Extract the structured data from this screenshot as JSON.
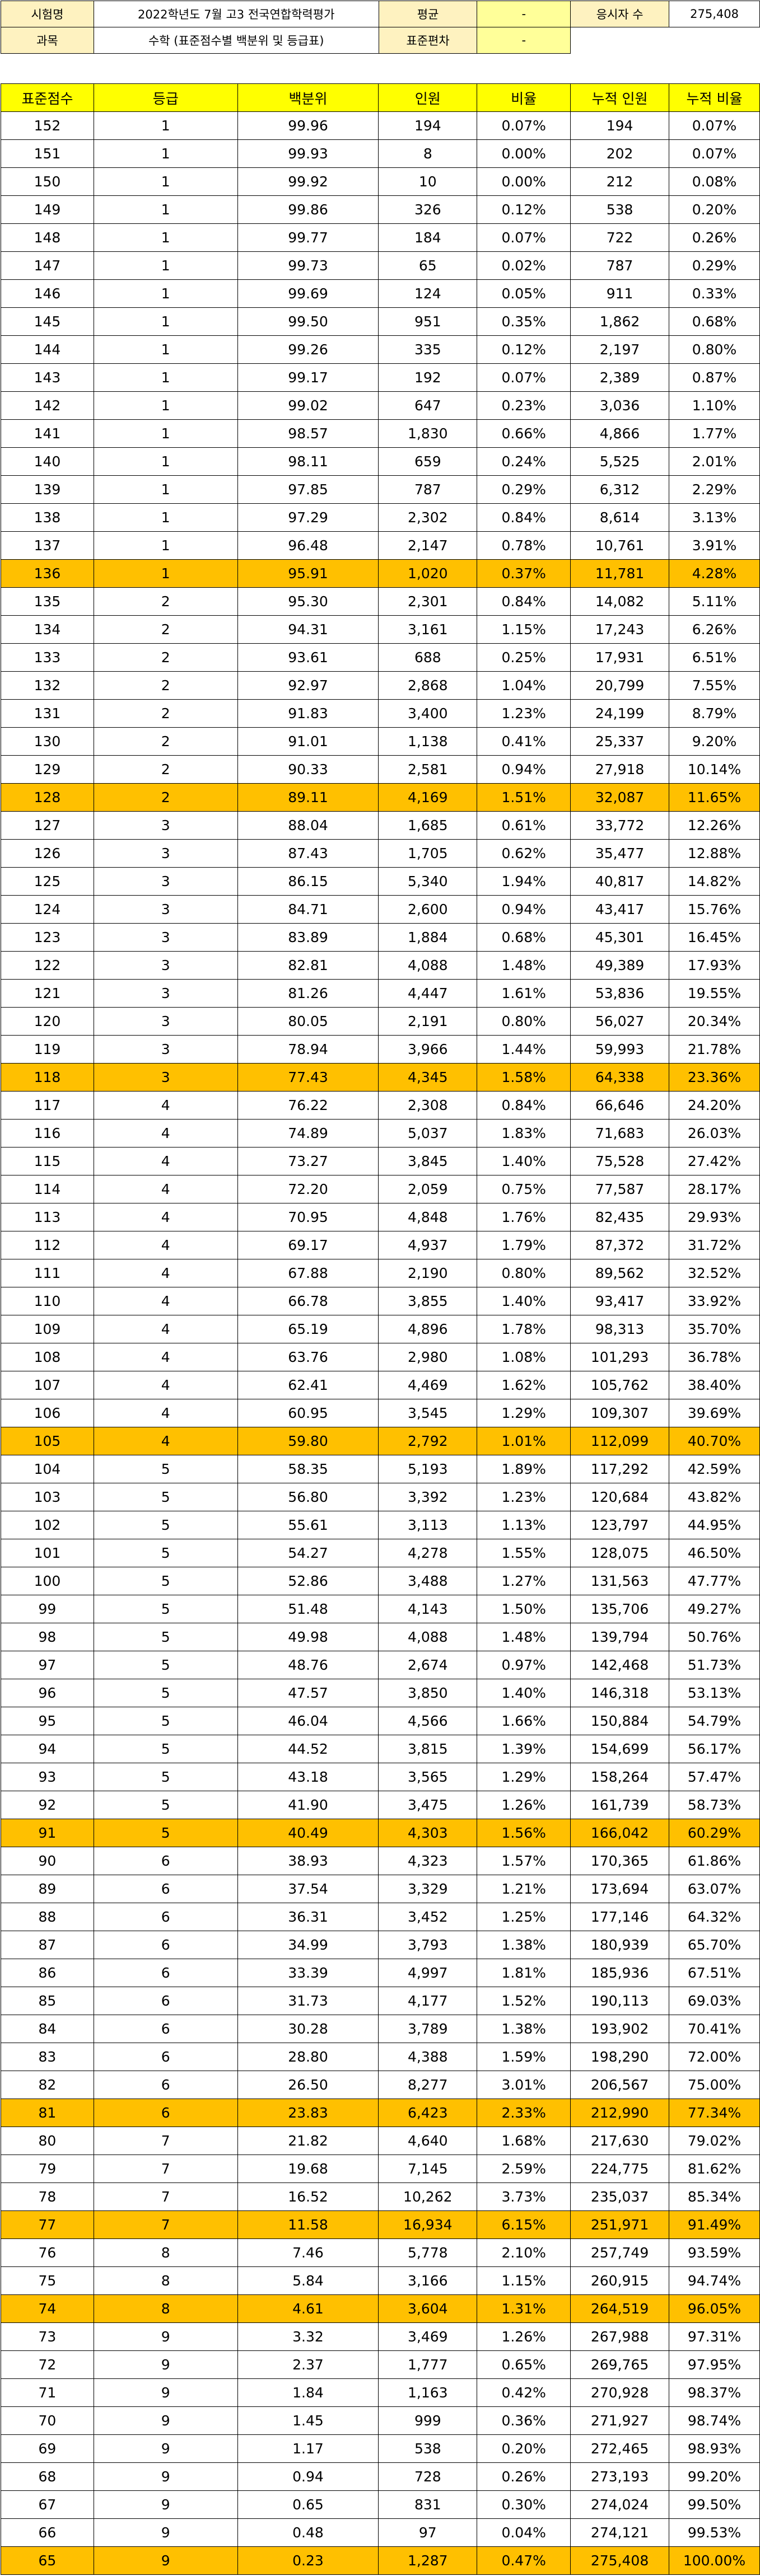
{
  "info": {
    "exam_label": "시험명",
    "exam_value": "2022학년도 7월 고3 전국연합학력평가",
    "mean_label": "평균",
    "mean_value": "-",
    "examinees_label": "응시자 수",
    "examinees_value": "275,408",
    "subject_label": "과목",
    "subject_value": "수학 (표준점수별 백분위 및 등급표)",
    "sd_label": "표준편차",
    "sd_value": "-"
  },
  "headers": [
    "표준점수",
    "등급",
    "백분위",
    "인원",
    "비율",
    "누적 인원",
    "누적 비율"
  ],
  "highlight_color": "#ffc000",
  "header_color": "#ffff00",
  "rows": [
    [
      "152",
      "1",
      "99.96",
      "194",
      "0.07%",
      "194",
      "0.07%"
    ],
    [
      "151",
      "1",
      "99.93",
      "8",
      "0.00%",
      "202",
      "0.07%"
    ],
    [
      "150",
      "1",
      "99.92",
      "10",
      "0.00%",
      "212",
      "0.08%"
    ],
    [
      "149",
      "1",
      "99.86",
      "326",
      "0.12%",
      "538",
      "0.20%"
    ],
    [
      "148",
      "1",
      "99.77",
      "184",
      "0.07%",
      "722",
      "0.26%"
    ],
    [
      "147",
      "1",
      "99.73",
      "65",
      "0.02%",
      "787",
      "0.29%"
    ],
    [
      "146",
      "1",
      "99.69",
      "124",
      "0.05%",
      "911",
      "0.33%"
    ],
    [
      "145",
      "1",
      "99.50",
      "951",
      "0.35%",
      "1,862",
      "0.68%"
    ],
    [
      "144",
      "1",
      "99.26",
      "335",
      "0.12%",
      "2,197",
      "0.80%"
    ],
    [
      "143",
      "1",
      "99.17",
      "192",
      "0.07%",
      "2,389",
      "0.87%"
    ],
    [
      "142",
      "1",
      "99.02",
      "647",
      "0.23%",
      "3,036",
      "1.10%"
    ],
    [
      "141",
      "1",
      "98.57",
      "1,830",
      "0.66%",
      "4,866",
      "1.77%"
    ],
    [
      "140",
      "1",
      "98.11",
      "659",
      "0.24%",
      "5,525",
      "2.01%"
    ],
    [
      "139",
      "1",
      "97.85",
      "787",
      "0.29%",
      "6,312",
      "2.29%"
    ],
    [
      "138",
      "1",
      "97.29",
      "2,302",
      "0.84%",
      "8,614",
      "3.13%"
    ],
    [
      "137",
      "1",
      "96.48",
      "2,147",
      "0.78%",
      "10,761",
      "3.91%"
    ],
    [
      "136",
      "1",
      "95.91",
      "1,020",
      "0.37%",
      "11,781",
      "4.28%"
    ],
    [
      "135",
      "2",
      "95.30",
      "2,301",
      "0.84%",
      "14,082",
      "5.11%"
    ],
    [
      "134",
      "2",
      "94.31",
      "3,161",
      "1.15%",
      "17,243",
      "6.26%"
    ],
    [
      "133",
      "2",
      "93.61",
      "688",
      "0.25%",
      "17,931",
      "6.51%"
    ],
    [
      "132",
      "2",
      "92.97",
      "2,868",
      "1.04%",
      "20,799",
      "7.55%"
    ],
    [
      "131",
      "2",
      "91.83",
      "3,400",
      "1.23%",
      "24,199",
      "8.79%"
    ],
    [
      "130",
      "2",
      "91.01",
      "1,138",
      "0.41%",
      "25,337",
      "9.20%"
    ],
    [
      "129",
      "2",
      "90.33",
      "2,581",
      "0.94%",
      "27,918",
      "10.14%"
    ],
    [
      "128",
      "2",
      "89.11",
      "4,169",
      "1.51%",
      "32,087",
      "11.65%"
    ],
    [
      "127",
      "3",
      "88.04",
      "1,685",
      "0.61%",
      "33,772",
      "12.26%"
    ],
    [
      "126",
      "3",
      "87.43",
      "1,705",
      "0.62%",
      "35,477",
      "12.88%"
    ],
    [
      "125",
      "3",
      "86.15",
      "5,340",
      "1.94%",
      "40,817",
      "14.82%"
    ],
    [
      "124",
      "3",
      "84.71",
      "2,600",
      "0.94%",
      "43,417",
      "15.76%"
    ],
    [
      "123",
      "3",
      "83.89",
      "1,884",
      "0.68%",
      "45,301",
      "16.45%"
    ],
    [
      "122",
      "3",
      "82.81",
      "4,088",
      "1.48%",
      "49,389",
      "17.93%"
    ],
    [
      "121",
      "3",
      "81.26",
      "4,447",
      "1.61%",
      "53,836",
      "19.55%"
    ],
    [
      "120",
      "3",
      "80.05",
      "2,191",
      "0.80%",
      "56,027",
      "20.34%"
    ],
    [
      "119",
      "3",
      "78.94",
      "3,966",
      "1.44%",
      "59,993",
      "21.78%"
    ],
    [
      "118",
      "3",
      "77.43",
      "4,345",
      "1.58%",
      "64,338",
      "23.36%"
    ],
    [
      "117",
      "4",
      "76.22",
      "2,308",
      "0.84%",
      "66,646",
      "24.20%"
    ],
    [
      "116",
      "4",
      "74.89",
      "5,037",
      "1.83%",
      "71,683",
      "26.03%"
    ],
    [
      "115",
      "4",
      "73.27",
      "3,845",
      "1.40%",
      "75,528",
      "27.42%"
    ],
    [
      "114",
      "4",
      "72.20",
      "2,059",
      "0.75%",
      "77,587",
      "28.17%"
    ],
    [
      "113",
      "4",
      "70.95",
      "4,848",
      "1.76%",
      "82,435",
      "29.93%"
    ],
    [
      "112",
      "4",
      "69.17",
      "4,937",
      "1.79%",
      "87,372",
      "31.72%"
    ],
    [
      "111",
      "4",
      "67.88",
      "2,190",
      "0.80%",
      "89,562",
      "32.52%"
    ],
    [
      "110",
      "4",
      "66.78",
      "3,855",
      "1.40%",
      "93,417",
      "33.92%"
    ],
    [
      "109",
      "4",
      "65.19",
      "4,896",
      "1.78%",
      "98,313",
      "35.70%"
    ],
    [
      "108",
      "4",
      "63.76",
      "2,980",
      "1.08%",
      "101,293",
      "36.78%"
    ],
    [
      "107",
      "4",
      "62.41",
      "4,469",
      "1.62%",
      "105,762",
      "38.40%"
    ],
    [
      "106",
      "4",
      "60.95",
      "3,545",
      "1.29%",
      "109,307",
      "39.69%"
    ],
    [
      "105",
      "4",
      "59.80",
      "2,792",
      "1.01%",
      "112,099",
      "40.70%"
    ],
    [
      "104",
      "5",
      "58.35",
      "5,193",
      "1.89%",
      "117,292",
      "42.59%"
    ],
    [
      "103",
      "5",
      "56.80",
      "3,392",
      "1.23%",
      "120,684",
      "43.82%"
    ],
    [
      "102",
      "5",
      "55.61",
      "3,113",
      "1.13%",
      "123,797",
      "44.95%"
    ],
    [
      "101",
      "5",
      "54.27",
      "4,278",
      "1.55%",
      "128,075",
      "46.50%"
    ],
    [
      "100",
      "5",
      "52.86",
      "3,488",
      "1.27%",
      "131,563",
      "47.77%"
    ],
    [
      "99",
      "5",
      "51.48",
      "4,143",
      "1.50%",
      "135,706",
      "49.27%"
    ],
    [
      "98",
      "5",
      "49.98",
      "4,088",
      "1.48%",
      "139,794",
      "50.76%"
    ],
    [
      "97",
      "5",
      "48.76",
      "2,674",
      "0.97%",
      "142,468",
      "51.73%"
    ],
    [
      "96",
      "5",
      "47.57",
      "3,850",
      "1.40%",
      "146,318",
      "53.13%"
    ],
    [
      "95",
      "5",
      "46.04",
      "4,566",
      "1.66%",
      "150,884",
      "54.79%"
    ],
    [
      "94",
      "5",
      "44.52",
      "3,815",
      "1.39%",
      "154,699",
      "56.17%"
    ],
    [
      "93",
      "5",
      "43.18",
      "3,565",
      "1.29%",
      "158,264",
      "57.47%"
    ],
    [
      "92",
      "5",
      "41.90",
      "3,475",
      "1.26%",
      "161,739",
      "58.73%"
    ],
    [
      "91",
      "5",
      "40.49",
      "4,303",
      "1.56%",
      "166,042",
      "60.29%"
    ],
    [
      "90",
      "6",
      "38.93",
      "4,323",
      "1.57%",
      "170,365",
      "61.86%"
    ],
    [
      "89",
      "6",
      "37.54",
      "3,329",
      "1.21%",
      "173,694",
      "63.07%"
    ],
    [
      "88",
      "6",
      "36.31",
      "3,452",
      "1.25%",
      "177,146",
      "64.32%"
    ],
    [
      "87",
      "6",
      "34.99",
      "3,793",
      "1.38%",
      "180,939",
      "65.70%"
    ],
    [
      "86",
      "6",
      "33.39",
      "4,997",
      "1.81%",
      "185,936",
      "67.51%"
    ],
    [
      "85",
      "6",
      "31.73",
      "4,177",
      "1.52%",
      "190,113",
      "69.03%"
    ],
    [
      "84",
      "6",
      "30.28",
      "3,789",
      "1.38%",
      "193,902",
      "70.41%"
    ],
    [
      "83",
      "6",
      "28.80",
      "4,388",
      "1.59%",
      "198,290",
      "72.00%"
    ],
    [
      "82",
      "6",
      "26.50",
      "8,277",
      "3.01%",
      "206,567",
      "75.00%"
    ],
    [
      "81",
      "6",
      "23.83",
      "6,423",
      "2.33%",
      "212,990",
      "77.34%"
    ],
    [
      "80",
      "7",
      "21.82",
      "4,640",
      "1.68%",
      "217,630",
      "79.02%"
    ],
    [
      "79",
      "7",
      "19.68",
      "7,145",
      "2.59%",
      "224,775",
      "81.62%"
    ],
    [
      "78",
      "7",
      "16.52",
      "10,262",
      "3.73%",
      "235,037",
      "85.34%"
    ],
    [
      "77",
      "7",
      "11.58",
      "16,934",
      "6.15%",
      "251,971",
      "91.49%"
    ],
    [
      "76",
      "8",
      "7.46",
      "5,778",
      "2.10%",
      "257,749",
      "93.59%"
    ],
    [
      "75",
      "8",
      "5.84",
      "3,166",
      "1.15%",
      "260,915",
      "94.74%"
    ],
    [
      "74",
      "8",
      "4.61",
      "3,604",
      "1.31%",
      "264,519",
      "96.05%"
    ],
    [
      "73",
      "9",
      "3.32",
      "3,469",
      "1.26%",
      "267,988",
      "97.31%"
    ],
    [
      "72",
      "9",
      "2.37",
      "1,777",
      "0.65%",
      "269,765",
      "97.95%"
    ],
    [
      "71",
      "9",
      "1.84",
      "1,163",
      "0.42%",
      "270,928",
      "98.37%"
    ],
    [
      "70",
      "9",
      "1.45",
      "999",
      "0.36%",
      "271,927",
      "98.74%"
    ],
    [
      "69",
      "9",
      "1.17",
      "538",
      "0.20%",
      "272,465",
      "98.93%"
    ],
    [
      "68",
      "9",
      "0.94",
      "728",
      "0.26%",
      "273,193",
      "99.20%"
    ],
    [
      "67",
      "9",
      "0.65",
      "831",
      "0.30%",
      "274,024",
      "99.50%"
    ],
    [
      "66",
      "9",
      "0.48",
      "97",
      "0.04%",
      "274,121",
      "99.53%"
    ],
    [
      "65",
      "9",
      "0.23",
      "1,287",
      "0.47%",
      "275,408",
      "100.00%"
    ]
  ],
  "highlighted_scores": [
    "136",
    "128",
    "118",
    "105",
    "91",
    "81",
    "77",
    "74",
    "65"
  ]
}
